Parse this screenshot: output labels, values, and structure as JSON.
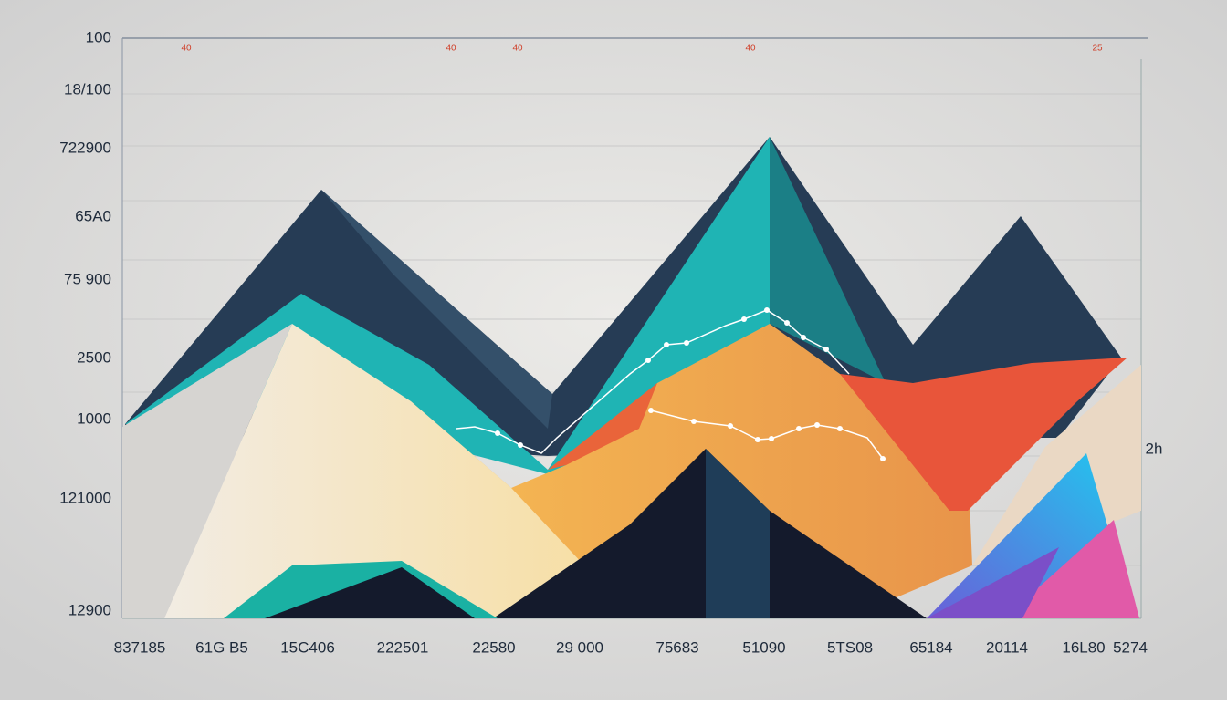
{
  "axis": {
    "y_labels": [
      "100",
      "18/100",
      "722900",
      "65A0",
      "75 900",
      "2500",
      "1000",
      "121000",
      "12900"
    ],
    "x_labels": [
      "837185",
      "61G B5",
      "15C406",
      "222501",
      "22580",
      "29 000",
      "75683",
      "51090",
      "5TS08",
      "65184",
      "20114",
      "16L80",
      "5274"
    ]
  },
  "top_labels": [
    "40",
    "40",
    "40",
    "40",
    "25"
  ],
  "right_label": "2h"
}
